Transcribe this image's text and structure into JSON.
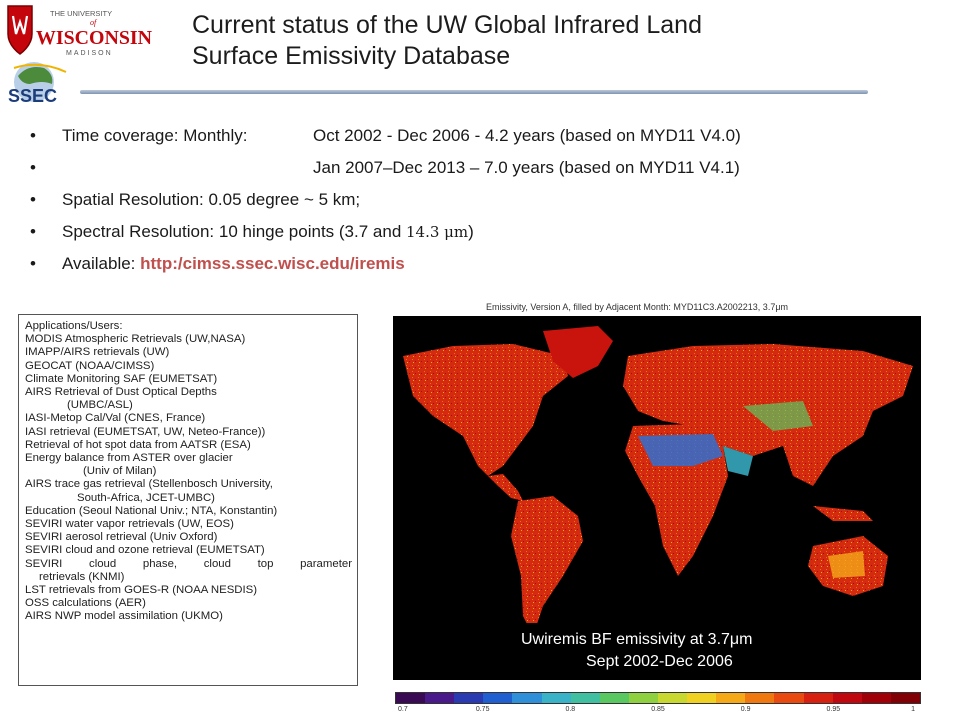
{
  "header": {
    "title_line1": "Current status of the UW Global Infrared Land",
    "title_line2": "Surface Emissivity Database",
    "uw_logo": {
      "line1": "THE UNIVERSITY",
      "line2": "of",
      "line3": "WISCONSIN",
      "line4": "MADISON"
    },
    "ssec_logo": "SSEC"
  },
  "bullets": {
    "b1_label": "Time coverage: Monthly:",
    "b1_value": "Oct 2002 - Dec 2006  - 4.2 years (based on MYD11 V4.0)",
    "b2_value": "Jan 2007–Dec 2013 – 7.0 years (based on MYD11 V4.1)",
    "b3": "Spatial Resolution: 0.05 degree ~ 5 km;",
    "b4_prefix": "Spectral Resolution: 10 hinge points (3.7 and ",
    "b4_unit": "14.3 μm",
    "b4_suffix": ")",
    "b5_label": "Available: ",
    "b5_link": "http:/cimss.ssec.wisc.edu/iremis",
    "bullet_char": "•"
  },
  "applications": {
    "heading": "Applications/Users:",
    "r1": "MODIS Atmospheric Retrievals (UW,NASA)",
    "r2": "IMAPP/AIRS retrievals (UW)",
    "r3": "GEOCAT (NOAA/CIMSS)",
    "r4": "Climate Monitoring SAF (EUMETSAT)",
    "r5": "AIRS Retrieval of Dust Optical Depths",
    "r5b": "(UMBC/ASL)",
    "r6": "IASI-Metop Cal/Val (CNES, France)",
    "r7": "IASI retrieval (EUMETSAT, UW, Neteo-France))",
    "r8": "Retrieval of hot spot data from AATSR (ESA)",
    "r9": "Energy balance from ASTER over glacier",
    "r9b": "(Univ of Milan)",
    "r10": "AIRS trace gas retrieval (Stellenbosch University,",
    "r10b": "South-Africa, JCET-UMBC)",
    "r11": "Education (Seoul National Univ.; NTA, Konstantin)",
    "r12": "SEVIRI water vapor retrievals (UW, EOS)",
    "r13": "SEVIRI aerosol retrieval (Univ Oxford)",
    "r14": "SEVIRI cloud and ozone retrieval (EUMETSAT)",
    "r15_words": [
      "SEVIRI",
      "cloud",
      "phase,",
      "cloud",
      "top",
      "parameter"
    ],
    "r15b": "retrievals (KNMI)",
    "r16": "LST retrievals from GOES-R (NOAA NESDIS)",
    "r17": "OSS calculations (AER)",
    "r18": "AIRS NWP model assimilation (UKMO)"
  },
  "map": {
    "title": "Emissivity, Version A, filled by Adjacent Month: MYD11C3.A2002213, 3.7μm",
    "caption_line1": "Uwiremis BF  emissivity at 3.7μm",
    "caption_line2": "Sept 2002-Dec 2006",
    "colorbar_colors": [
      "#3a0a55",
      "#4a1a8a",
      "#2a3ab0",
      "#1f5fd0",
      "#2f8fd8",
      "#3ab2c8",
      "#40c0a0",
      "#5ac860",
      "#8fd040",
      "#c8d830",
      "#f0d020",
      "#f5a818",
      "#f07810",
      "#e84a10",
      "#d82010",
      "#c00810",
      "#a00008",
      "#800005"
    ],
    "colorbar_ticks": [
      "0.7",
      "0.75",
      "0.8",
      "0.85",
      "0.9",
      "0.95",
      "1"
    ]
  }
}
